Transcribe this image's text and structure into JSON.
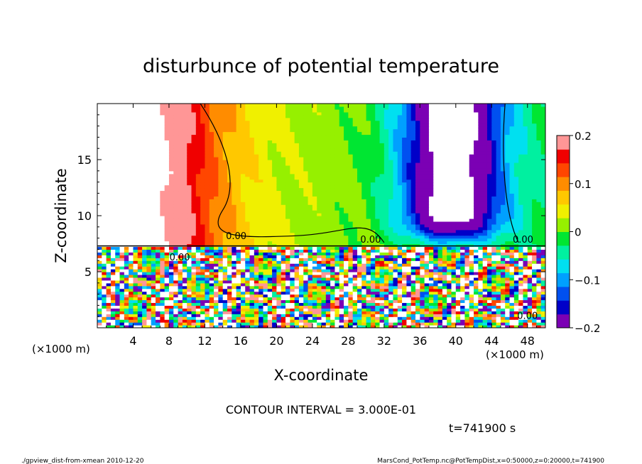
{
  "chart_data": {
    "type": "heatmap",
    "title": "disturbunce of potential temperature",
    "xlabel": "X-coordinate",
    "ylabel": "Z-coordinate",
    "xunit": "(×1000 m)",
    "yunit": "(×1000 m)",
    "xlim": [
      0,
      50
    ],
    "ylim": [
      0,
      20
    ],
    "xticks": [
      4,
      8,
      12,
      16,
      20,
      24,
      28,
      32,
      36,
      40,
      44,
      48
    ],
    "yticks": [
      5,
      10,
      15
    ],
    "colorbar": {
      "range": [
        -0.2,
        0.2
      ],
      "ticks": [
        0.2,
        0.1,
        0,
        -0.1,
        -0.2
      ],
      "tick_labels": [
        "0.2",
        "0.1",
        "0",
        "−0.1",
        "−0.2"
      ]
    },
    "contour_labels": [
      "0.00",
      "0.00",
      "0.00",
      "0.00",
      "0.00"
    ],
    "contour_interval": "CONTOUR INTERVAL = 3.000E-01",
    "time_label": "t=741900 s",
    "footer_left": "./gpview_dist-from-xmean  2010-12-20",
    "footer_right": "MarsCond_PotTemp.nc@PotTempDist,x=0:50000,z=0:20000,t=741900"
  },
  "colors": {
    "palette": [
      "#7b00b4",
      "#0000c8",
      "#0050f0",
      "#00a0ff",
      "#00e0f0",
      "#00f0a0",
      "#00e632",
      "#96f000",
      "#f0f000",
      "#ffc800",
      "#ff8c00",
      "#ff4600",
      "#f00000",
      "#ff9696"
    ],
    "background": "#ffffff",
    "lines": "#000000"
  }
}
